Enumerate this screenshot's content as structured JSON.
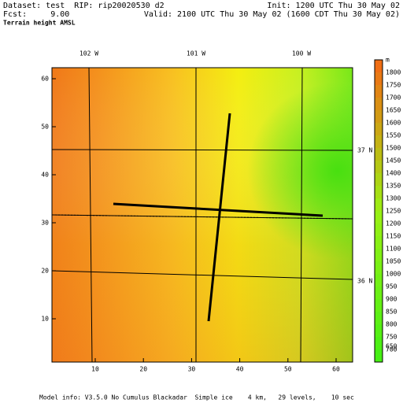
{
  "header": {
    "dataset": "Dataset: test  RIP: rip20020530 d2",
    "init": "Init: 1200 UTC Thu 30 May 02",
    "fcst": "Fcst:     9.00",
    "valid": "Valid: 2100 UTC Thu 30 May 02 (1600 CDT Thu 30 May 02)",
    "field": "Terrain height AMSL"
  },
  "axes": {
    "x_ticks": [
      "10",
      "20",
      "30",
      "40",
      "50",
      "60"
    ],
    "y_ticks": [
      "10",
      "20",
      "30",
      "40",
      "50",
      "60"
    ],
    "longitudes": [
      "102 W",
      "101 W",
      "100 W"
    ],
    "latitudes": [
      "37 N",
      "36 N"
    ]
  },
  "colorbar": {
    "unit": "m",
    "labels": [
      "1800",
      "1750",
      "1700",
      "1650",
      "1600",
      "1550",
      "1500",
      "1450",
      "1400",
      "1350",
      "1300",
      "1250",
      "1200",
      "1150",
      "1100",
      "1050",
      "1000",
      "950",
      "900",
      "850",
      "800",
      "750",
      "700",
      "650"
    ]
  },
  "footer": "Model info: V3.5.0 No Cumulus Blackadar  Simple ice    4 km,   29 levels,    10 sec"
}
